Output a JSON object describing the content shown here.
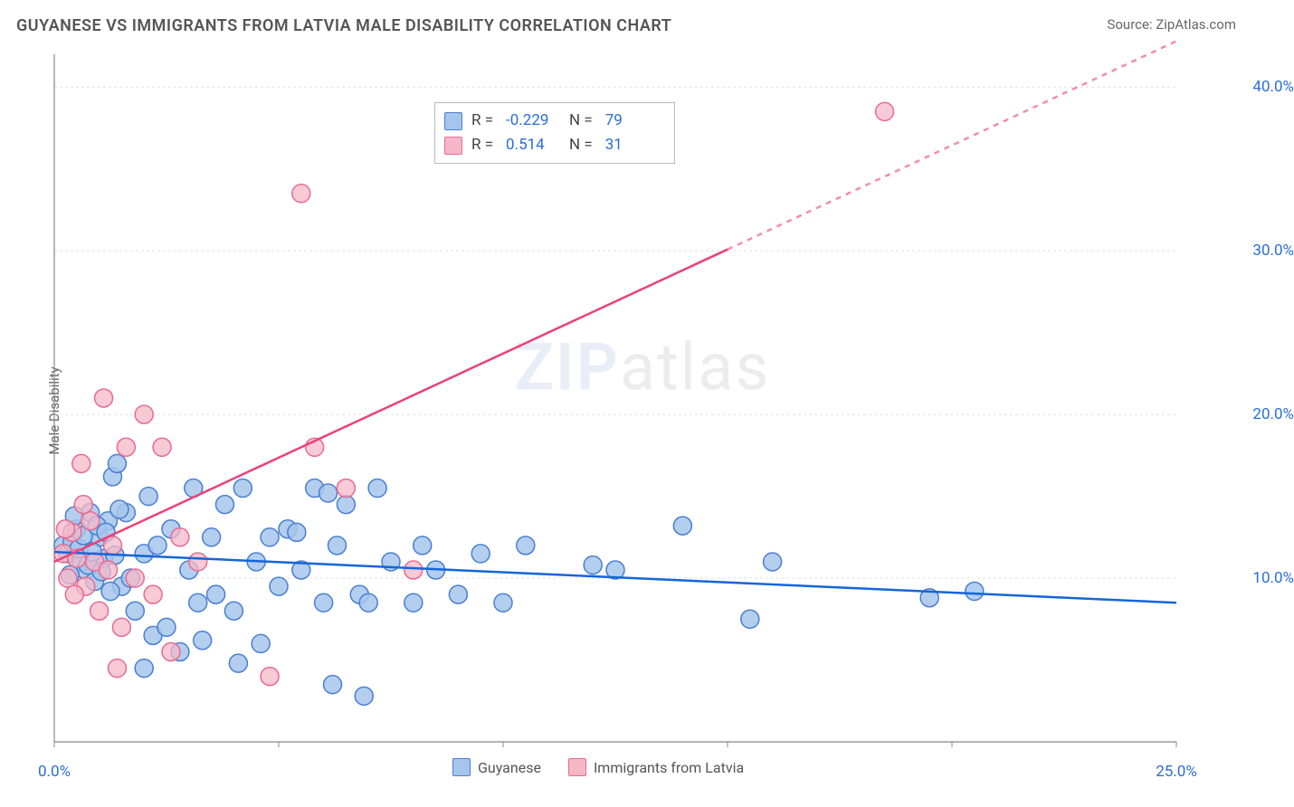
{
  "title": "GUYANESE VS IMMIGRANTS FROM LATVIA MALE DISABILITY CORRELATION CHART",
  "source": "Source: ZipAtlas.com",
  "ylabel": "Male Disability",
  "watermark": {
    "part1": "ZIP",
    "part2": "atlas"
  },
  "chart": {
    "type": "scatter",
    "background_color": "#ffffff",
    "grid_color": "#e0e0e0",
    "axis_color": "#888888",
    "label_color": "#2a6ed6",
    "xlim": [
      0,
      25
    ],
    "ylim": [
      0,
      42
    ],
    "x_ticks": [
      0,
      5,
      10,
      15,
      20,
      25
    ],
    "x_tick_labels": [
      "0.0%",
      "",
      "",
      "",
      "",
      "25.0%"
    ],
    "y_ticks": [
      10,
      20,
      30,
      40
    ],
    "y_tick_labels": [
      "10.0%",
      "20.0%",
      "30.0%",
      "40.0%"
    ],
    "series": [
      {
        "name": "Guyanese",
        "color_fill": "#a6c5ec",
        "color_stroke": "#4a7fd0",
        "marker_radius": 10,
        "marker_opacity": 0.85,
        "R": "-0.229",
        "N": "79",
        "trendline": {
          "x1": 0,
          "y1": 11.6,
          "x2": 25,
          "y2": 8.5,
          "color": "#1565d8",
          "width": 2.5,
          "dash_after_x": null
        },
        "points": [
          [
            0.2,
            12.0
          ],
          [
            0.3,
            11.5
          ],
          [
            0.4,
            12.2
          ],
          [
            0.5,
            13.0
          ],
          [
            0.6,
            11.0
          ],
          [
            0.7,
            10.5
          ],
          [
            0.8,
            14.0
          ],
          [
            0.9,
            9.8
          ],
          [
            1.0,
            12.5
          ],
          [
            1.1,
            11.2
          ],
          [
            1.2,
            13.5
          ],
          [
            1.3,
            16.2
          ],
          [
            1.5,
            9.5
          ],
          [
            1.6,
            14.0
          ],
          [
            1.7,
            10.0
          ],
          [
            1.8,
            8.0
          ],
          [
            2.0,
            11.5
          ],
          [
            2.1,
            15.0
          ],
          [
            2.2,
            6.5
          ],
          [
            2.3,
            12.0
          ],
          [
            2.5,
            7.0
          ],
          [
            2.6,
            13.0
          ],
          [
            2.8,
            5.5
          ],
          [
            3.0,
            10.5
          ],
          [
            3.1,
            15.5
          ],
          [
            3.2,
            8.5
          ],
          [
            3.5,
            12.5
          ],
          [
            3.6,
            9.0
          ],
          [
            3.8,
            14.5
          ],
          [
            4.0,
            8.0
          ],
          [
            4.2,
            15.5
          ],
          [
            4.5,
            11.0
          ],
          [
            4.6,
            6.0
          ],
          [
            4.8,
            12.5
          ],
          [
            5.0,
            9.5
          ],
          [
            5.2,
            13.0
          ],
          [
            5.5,
            10.5
          ],
          [
            5.8,
            15.5
          ],
          [
            6.0,
            8.5
          ],
          [
            6.2,
            3.5
          ],
          [
            6.3,
            12.0
          ],
          [
            6.5,
            14.5
          ],
          [
            6.8,
            9.0
          ],
          [
            7.0,
            8.5
          ],
          [
            7.2,
            15.5
          ],
          [
            7.5,
            11.0
          ],
          [
            8.0,
            8.5
          ],
          [
            8.2,
            12.0
          ],
          [
            8.5,
            10.5
          ],
          [
            9.0,
            9.0
          ],
          [
            9.5,
            11.5
          ],
          [
            10.0,
            8.5
          ],
          [
            10.5,
            12.0
          ],
          [
            12.0,
            10.8
          ],
          [
            12.5,
            10.5
          ],
          [
            14.0,
            13.2
          ],
          [
            15.5,
            7.5
          ],
          [
            16.0,
            11.0
          ],
          [
            19.5,
            8.8
          ],
          [
            20.5,
            9.2
          ],
          [
            1.4,
            17.0
          ],
          [
            2.0,
            4.5
          ],
          [
            3.3,
            6.2
          ],
          [
            4.1,
            4.8
          ],
          [
            5.4,
            12.8
          ],
          [
            6.1,
            15.2
          ],
          [
            6.9,
            2.8
          ],
          [
            0.35,
            10.2
          ],
          [
            0.45,
            13.8
          ],
          [
            0.55,
            11.8
          ],
          [
            0.65,
            12.6
          ],
          [
            0.75,
            10.8
          ],
          [
            0.85,
            11.6
          ],
          [
            0.95,
            13.2
          ],
          [
            1.05,
            10.4
          ],
          [
            1.15,
            12.8
          ],
          [
            1.25,
            9.2
          ],
          [
            1.35,
            11.4
          ],
          [
            1.45,
            14.2
          ]
        ]
      },
      {
        "name": "Immigrants from Latvia",
        "color_fill": "#f5b8c8",
        "color_stroke": "#e86b8f",
        "marker_radius": 10,
        "marker_opacity": 0.75,
        "R": "0.514",
        "N": "31",
        "trendline": {
          "x1": 0,
          "y1": 11.0,
          "x2": 25,
          "y2": 42.8,
          "color": "#ec407a",
          "width": 2.5,
          "dash_after_x": 15.0
        },
        "points": [
          [
            0.2,
            11.5
          ],
          [
            0.3,
            10.0
          ],
          [
            0.4,
            12.8
          ],
          [
            0.5,
            11.2
          ],
          [
            0.6,
            17.0
          ],
          [
            0.7,
            9.5
          ],
          [
            0.8,
            13.5
          ],
          [
            0.9,
            11.0
          ],
          [
            1.0,
            8.0
          ],
          [
            1.1,
            21.0
          ],
          [
            1.2,
            10.5
          ],
          [
            1.3,
            12.0
          ],
          [
            1.5,
            7.0
          ],
          [
            1.6,
            18.0
          ],
          [
            1.8,
            10.0
          ],
          [
            2.0,
            20.0
          ],
          [
            2.2,
            9.0
          ],
          [
            2.4,
            18.0
          ],
          [
            2.6,
            5.5
          ],
          [
            2.8,
            12.5
          ],
          [
            3.2,
            11.0
          ],
          [
            4.8,
            4.0
          ],
          [
            5.5,
            33.5
          ],
          [
            5.8,
            18.0
          ],
          [
            6.5,
            15.5
          ],
          [
            8.0,
            10.5
          ],
          [
            1.4,
            4.5
          ],
          [
            0.25,
            13.0
          ],
          [
            0.45,
            9.0
          ],
          [
            0.65,
            14.5
          ],
          [
            18.5,
            38.5
          ]
        ]
      }
    ],
    "bottom_legend": [
      {
        "label": "Guyanese",
        "fill": "#a6c5ec",
        "stroke": "#4a7fd0"
      },
      {
        "label": "Immigrants from Latvia",
        "fill": "#f5b8c8",
        "stroke": "#e86b8f"
      }
    ]
  }
}
